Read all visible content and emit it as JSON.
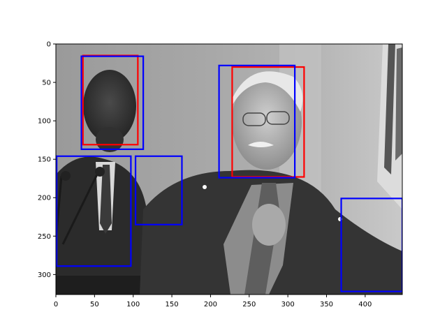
{
  "chart_data": {
    "type": "image",
    "title": "",
    "xlabel": "",
    "ylabel": "",
    "xlim": [
      0,
      448
    ],
    "ylim": [
      326,
      0
    ],
    "y_inverted": true,
    "grid": false,
    "legend": "none",
    "x_ticks": [
      0,
      50,
      100,
      150,
      200,
      250,
      300,
      350,
      400
    ],
    "y_ticks": [
      0,
      50,
      100,
      150,
      200,
      250,
      300
    ],
    "image": {
      "description": "grayscale photograph of two men in suits at a podium with a flag",
      "extent": [
        0,
        448,
        326,
        0
      ]
    },
    "boxes": [
      {
        "group": "red",
        "color": "#ff0000",
        "x0": 35,
        "y0": 15,
        "x1": 106,
        "y1": 131
      },
      {
        "group": "red",
        "color": "#ff0000",
        "x0": 228,
        "y0": 30,
        "x1": 321,
        "y1": 173
      },
      {
        "group": "blue",
        "color": "#0000ff",
        "x0": 33,
        "y0": 16,
        "x1": 113,
        "y1": 137
      },
      {
        "group": "blue",
        "color": "#0000ff",
        "x0": 211,
        "y0": 28,
        "x1": 309,
        "y1": 174
      },
      {
        "group": "blue",
        "color": "#0000ff",
        "x0": 1,
        "y0": 146,
        "x1": 97,
        "y1": 289
      },
      {
        "group": "blue",
        "color": "#0000ff",
        "x0": 103,
        "y0": 146,
        "x1": 163,
        "y1": 235
      },
      {
        "group": "blue",
        "color": "#0000ff",
        "x0": 369,
        "y0": 201,
        "x1": 448,
        "y1": 322
      }
    ]
  }
}
